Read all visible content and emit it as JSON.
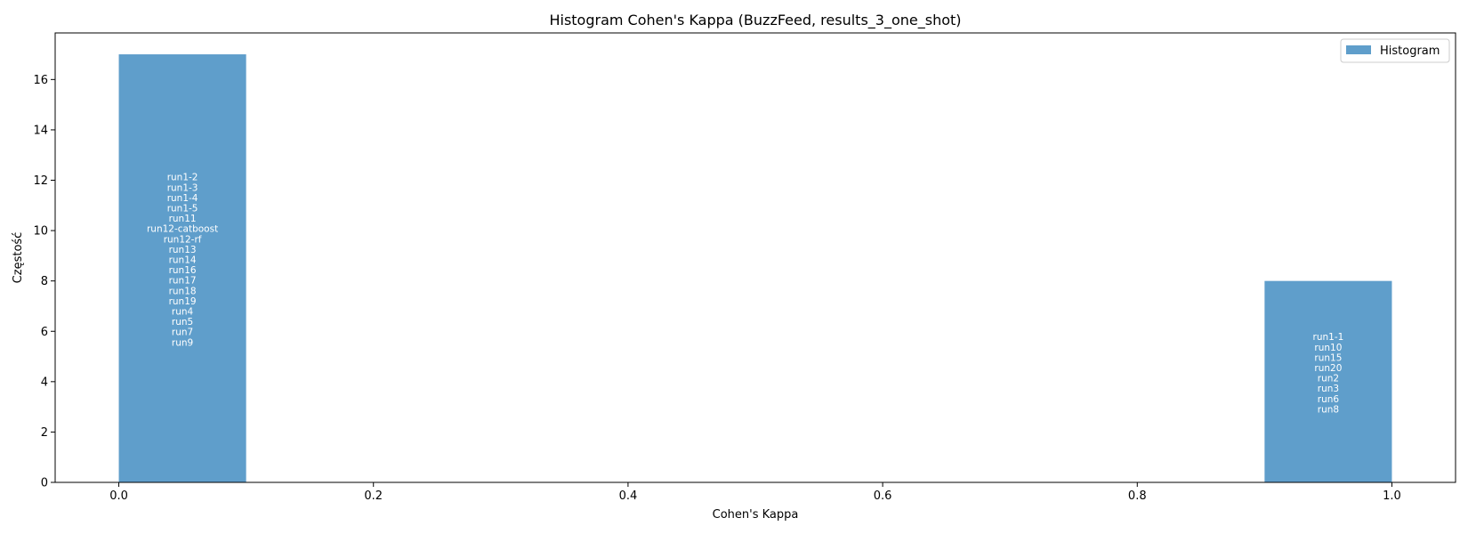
{
  "chart_data": {
    "type": "bar",
    "title": "Histogram Cohen's Kappa (BuzzFeed, results_3_one_shot)",
    "xlabel": "Cohen's Kappa",
    "ylabel": "Częstość",
    "xlim": [
      -0.05,
      1.05
    ],
    "ylim": [
      0,
      17.85
    ],
    "xticks": [
      0.0,
      0.2,
      0.4,
      0.6,
      0.8,
      1.0
    ],
    "xtick_labels": [
      "0.0",
      "0.2",
      "0.4",
      "0.6",
      "0.8",
      "1.0"
    ],
    "yticks": [
      0,
      2,
      4,
      6,
      8,
      10,
      12,
      14,
      16
    ],
    "ytick_labels": [
      "0",
      "2",
      "4",
      "6",
      "8",
      "10",
      "12",
      "14",
      "16"
    ],
    "grid": false,
    "legend": {
      "position": "top-right",
      "entries": [
        "Histogram"
      ]
    },
    "bar_color": "#5f9ecb",
    "bars": [
      {
        "x0": 0.0,
        "x1": 0.1,
        "value": 17,
        "labels": [
          "run1-2",
          "run1-3",
          "run1-4",
          "run1-5",
          "run11",
          "run12-catboost",
          "run12-rf",
          "run13",
          "run14",
          "run16",
          "run17",
          "run18",
          "run19",
          "run4",
          "run5",
          "run7",
          "run9"
        ]
      },
      {
        "x0": 0.9,
        "x1": 1.0,
        "value": 8,
        "labels": [
          "run1-1",
          "run10",
          "run15",
          "run20",
          "run2",
          "run3",
          "run6",
          "run8"
        ]
      }
    ]
  }
}
